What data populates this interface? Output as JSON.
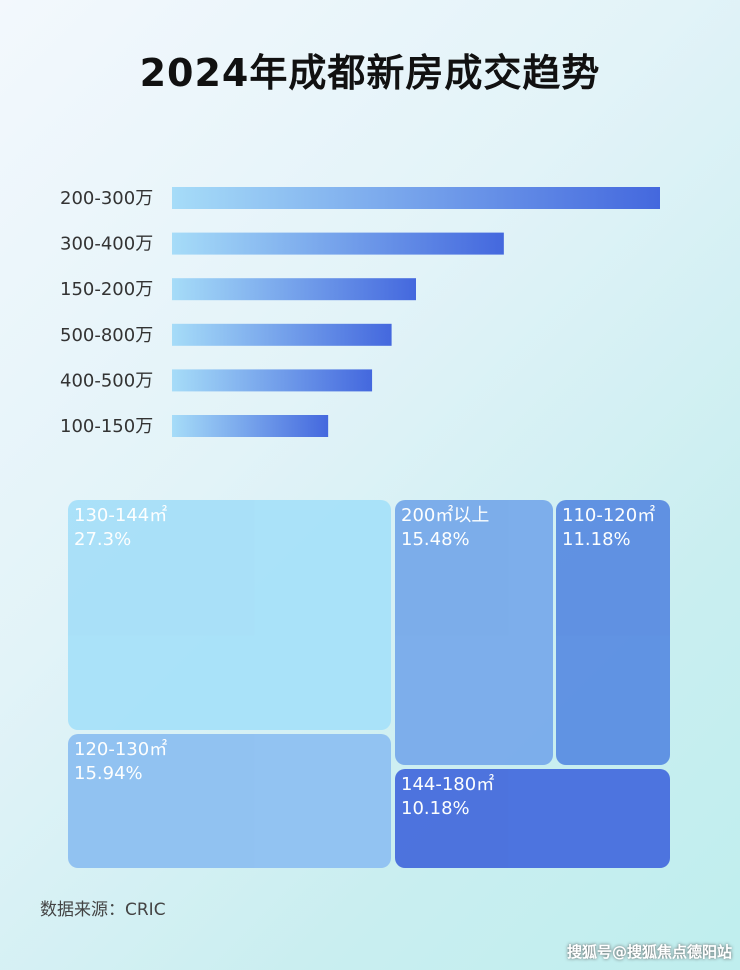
{
  "title": "2024年成都新房成交趋势",
  "chart_data": [
    {
      "type": "bar",
      "orientation": "horizontal",
      "categories": [
        "200-300万",
        "300-400万",
        "150-200万",
        "500-800万",
        "400-500万",
        "100-150万"
      ],
      "values": [
        100,
        68,
        50,
        45,
        41,
        32
      ],
      "value_note_unit": "relative bar length (no axis printed)",
      "colors": {
        "start": "#a6dcf8",
        "end": "#4468de"
      }
    },
    {
      "type": "treemap",
      "items": [
        {
          "label": "130-144㎡",
          "value": "27.3%",
          "color": "#a7e0f9"
        },
        {
          "label": "120-130㎡",
          "value": "15.94%",
          "color": "#8ec0f1"
        },
        {
          "label": "200㎡以上",
          "value": "15.48%",
          "color": "#78aaea"
        },
        {
          "label": "110-120㎡",
          "value": "11.18%",
          "color": "#5b8de2"
        },
        {
          "label": "144-180㎡",
          "value": "10.18%",
          "color": "#476ddd"
        }
      ]
    }
  ],
  "source": "数据来源：CRIC",
  "watermark": "搜狐号@搜狐焦点德阳站"
}
